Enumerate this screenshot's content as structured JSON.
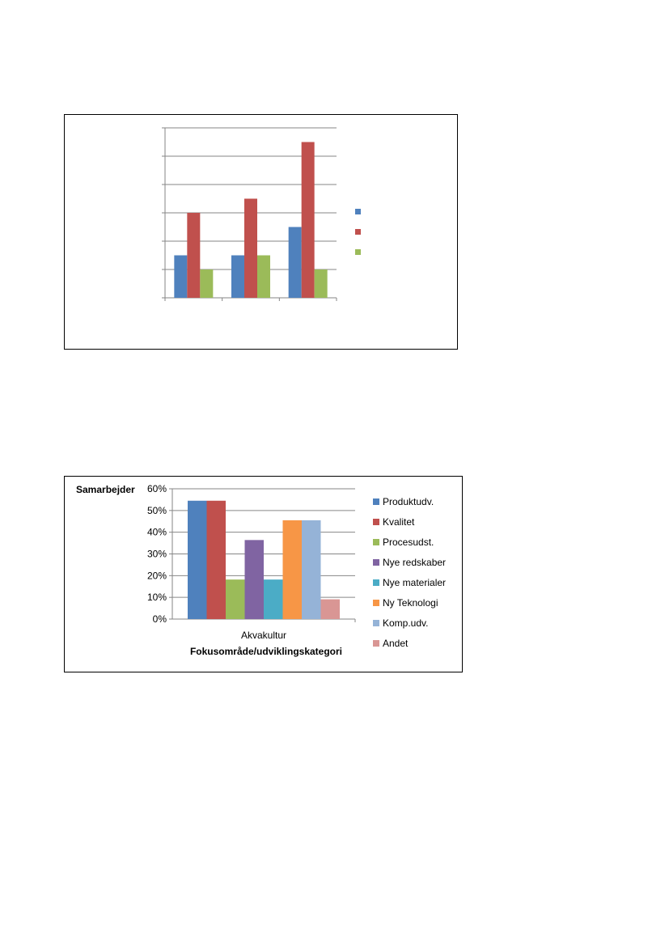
{
  "chart_data": [
    {
      "type": "bar",
      "title": "",
      "xlabel": "",
      "ylabel": "",
      "categories": [
        "",
        "",
        ""
      ],
      "ylim": [
        0,
        6
      ],
      "grid": true,
      "legend": "right",
      "series": [
        {
          "color": "#4f81bd",
          "values": [
            1.5,
            1.5,
            2.5
          ]
        },
        {
          "color": "#c0504d",
          "values": [
            3,
            3.5,
            5.5
          ]
        },
        {
          "color": "#9bbb59",
          "values": [
            1,
            1.5,
            1
          ]
        }
      ]
    },
    {
      "type": "bar",
      "title": "",
      "ylabel": "Samarbejder",
      "xlabel": "Fokusområde/udviklingskategori",
      "categories": [
        "Akvakultur"
      ],
      "ylim": [
        0,
        60
      ],
      "yticks": [
        "0%",
        "10%",
        "20%",
        "30%",
        "40%",
        "50%",
        "60%"
      ],
      "grid": true,
      "legend": "right",
      "series": [
        {
          "name": "Produktudv.",
          "color": "#4f81bd",
          "values": [
            54.5
          ]
        },
        {
          "name": "Kvalitet",
          "color": "#c0504d",
          "values": [
            54.5
          ]
        },
        {
          "name": "Procesudst.",
          "color": "#9bbb59",
          "values": [
            18.2
          ]
        },
        {
          "name": "Nye redskaber",
          "color": "#8064a2",
          "values": [
            36.4
          ]
        },
        {
          "name": "Nye materialer",
          "color": "#4bacc6",
          "values": [
            18.2
          ]
        },
        {
          "name": "Ny Teknologi",
          "color": "#f79646",
          "values": [
            45.5
          ]
        },
        {
          "name": "Komp.udv.",
          "color": "#95b3d7",
          "values": [
            45.5
          ]
        },
        {
          "name": "Andet",
          "color": "#d99694",
          "values": [
            9.1
          ]
        }
      ]
    }
  ]
}
